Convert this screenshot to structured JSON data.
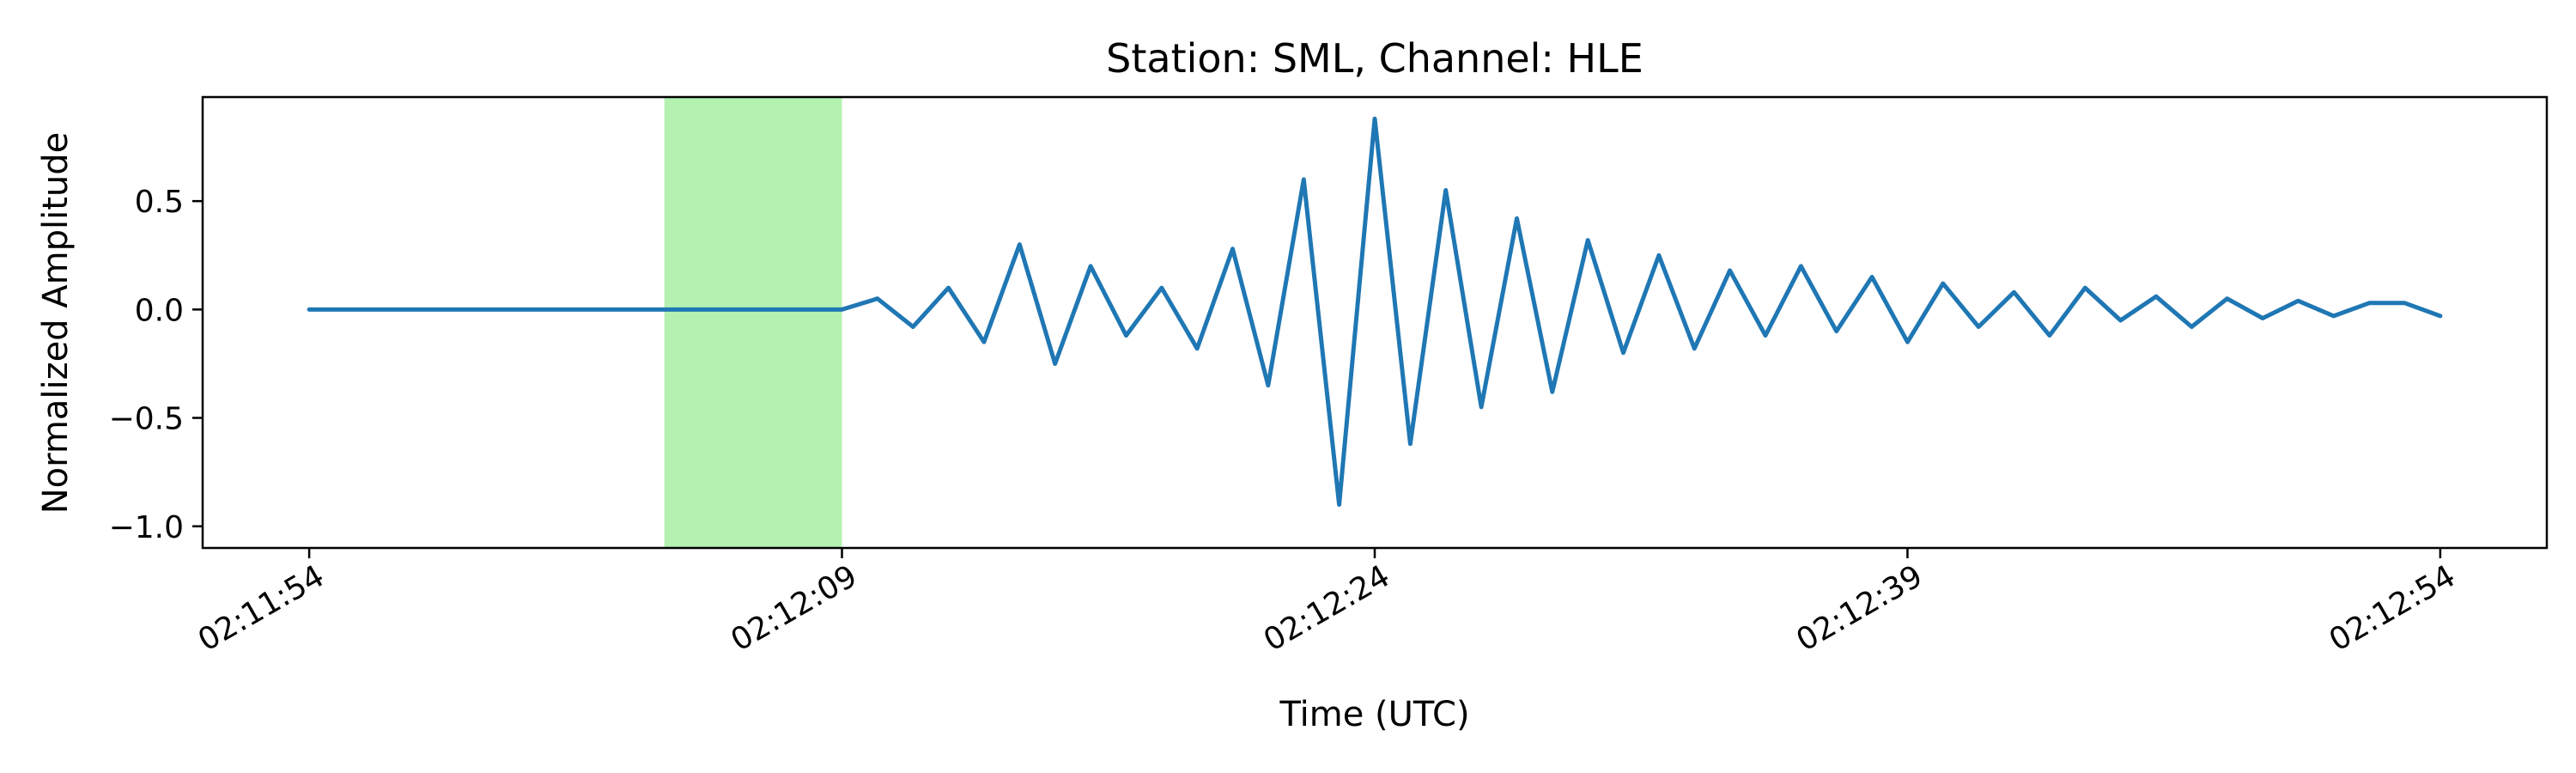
{
  "chart_data": {
    "type": "line",
    "title": "Station: SML, Channel: HLE",
    "xlabel": "Time (UTC)",
    "ylabel": "Normalized Amplitude",
    "xlim": [
      "02:11:51",
      "02:12:57"
    ],
    "ylim": [
      -1.1,
      0.98
    ],
    "x_ticks": [
      "02:11:54",
      "02:12:09",
      "02:12:24",
      "02:12:39",
      "02:12:54"
    ],
    "y_ticks": [
      "0.5",
      "0.0",
      "−0.5",
      "−1.0"
    ],
    "y_tick_values": [
      0.5,
      0.0,
      -0.5,
      -1.0
    ],
    "grid": false,
    "legend": "none",
    "highlight_span": {
      "start": "02:12:04",
      "end": "02:12:09",
      "color": "#b3f2b0"
    },
    "series": [
      {
        "color": "#1f77b4",
        "x": [
          "02:11:54",
          "02:12:00",
          "02:12:05",
          "02:12:09",
          "02:12:10",
          "02:12:11",
          "02:12:12",
          "02:12:13",
          "02:12:14",
          "02:12:15",
          "02:12:16",
          "02:12:17",
          "02:12:18",
          "02:12:19",
          "02:12:20",
          "02:12:21",
          "02:12:22",
          "02:12:23",
          "02:12:24",
          "02:12:25",
          "02:12:26",
          "02:12:27",
          "02:12:28",
          "02:12:29",
          "02:12:30",
          "02:12:31",
          "02:12:32",
          "02:12:33",
          "02:12:34",
          "02:12:35",
          "02:12:36",
          "02:12:37",
          "02:12:38",
          "02:12:39",
          "02:12:40",
          "02:12:41",
          "02:12:42",
          "02:12:43",
          "02:12:44",
          "02:12:45",
          "02:12:46",
          "02:12:47",
          "02:12:48",
          "02:12:49",
          "02:12:50",
          "02:12:51",
          "02:12:52",
          "02:12:53",
          "02:12:54"
        ],
        "y": [
          0.0,
          0.0,
          0.0,
          0.0,
          0.05,
          -0.08,
          0.1,
          -0.15,
          0.3,
          -0.25,
          0.2,
          -0.12,
          0.1,
          -0.18,
          0.28,
          -0.35,
          0.6,
          -0.9,
          0.88,
          -0.62,
          0.55,
          -0.45,
          0.42,
          -0.38,
          0.32,
          -0.2,
          0.25,
          -0.18,
          0.18,
          -0.12,
          0.2,
          -0.1,
          0.15,
          -0.15,
          0.12,
          -0.08,
          0.08,
          -0.12,
          0.1,
          -0.05,
          0.06,
          -0.08,
          0.05,
          -0.04,
          0.04,
          -0.03,
          0.03,
          0.03,
          -0.03
        ]
      }
    ]
  }
}
